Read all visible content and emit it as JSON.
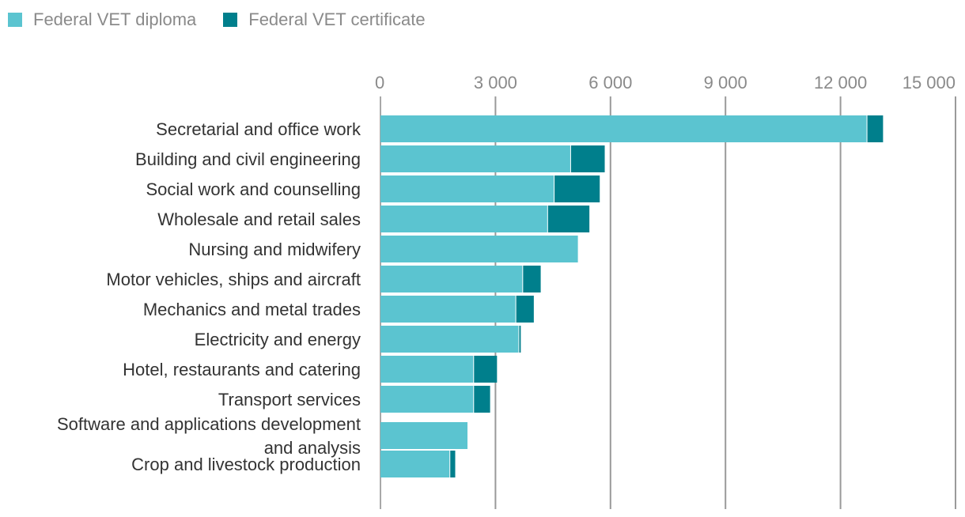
{
  "chart_data": {
    "type": "bar",
    "orientation": "horizontal",
    "stacked": true,
    "title": "",
    "xlabel": "",
    "ylabel": "",
    "xlim": [
      0,
      15000
    ],
    "ticks": [
      0,
      3000,
      6000,
      9000,
      12000,
      15000
    ],
    "tick_labels": [
      "0",
      "3 000",
      "6 000",
      "9 000",
      "12 000",
      "15 000"
    ],
    "grid": true,
    "legend_position": "top-left",
    "categories": [
      "Secretarial and office work",
      "Building and civil engineering",
      "Social work and counselling",
      "Wholesale and retail sales",
      "Nursing and midwifery",
      "Motor vehicles, ships and aircraft",
      "Mechanics and metal trades",
      "Electricity and energy",
      "Hotel, restaurants and catering",
      "Transport services",
      "Software and applications development and analysis",
      "Crop and livestock production"
    ],
    "category_lines": [
      [
        "Secretarial and office work"
      ],
      [
        "Building and civil engineering"
      ],
      [
        "Social work and counselling"
      ],
      [
        "Wholesale and retail sales"
      ],
      [
        "Nursing and midwifery"
      ],
      [
        "Motor vehicles, ships and aircraft"
      ],
      [
        "Mechanics and metal trades"
      ],
      [
        "Electricity and energy"
      ],
      [
        "Hotel, restaurants and catering"
      ],
      [
        "Transport services"
      ],
      [
        "Software and applications development",
        "and analysis"
      ],
      [
        "Crop and livestock production"
      ]
    ],
    "series": [
      {
        "name": "Federal VET diploma",
        "color": "#5bc4d0",
        "values": [
          12680,
          4950,
          4520,
          4350,
          5150,
          3700,
          3520,
          3600,
          2420,
          2420,
          2270,
          1800
        ]
      },
      {
        "name": "Federal VET certificate",
        "color": "#007f8c",
        "values": [
          430,
          900,
          1200,
          1100,
          0,
          480,
          480,
          60,
          620,
          440,
          0,
          150
        ]
      }
    ]
  }
}
